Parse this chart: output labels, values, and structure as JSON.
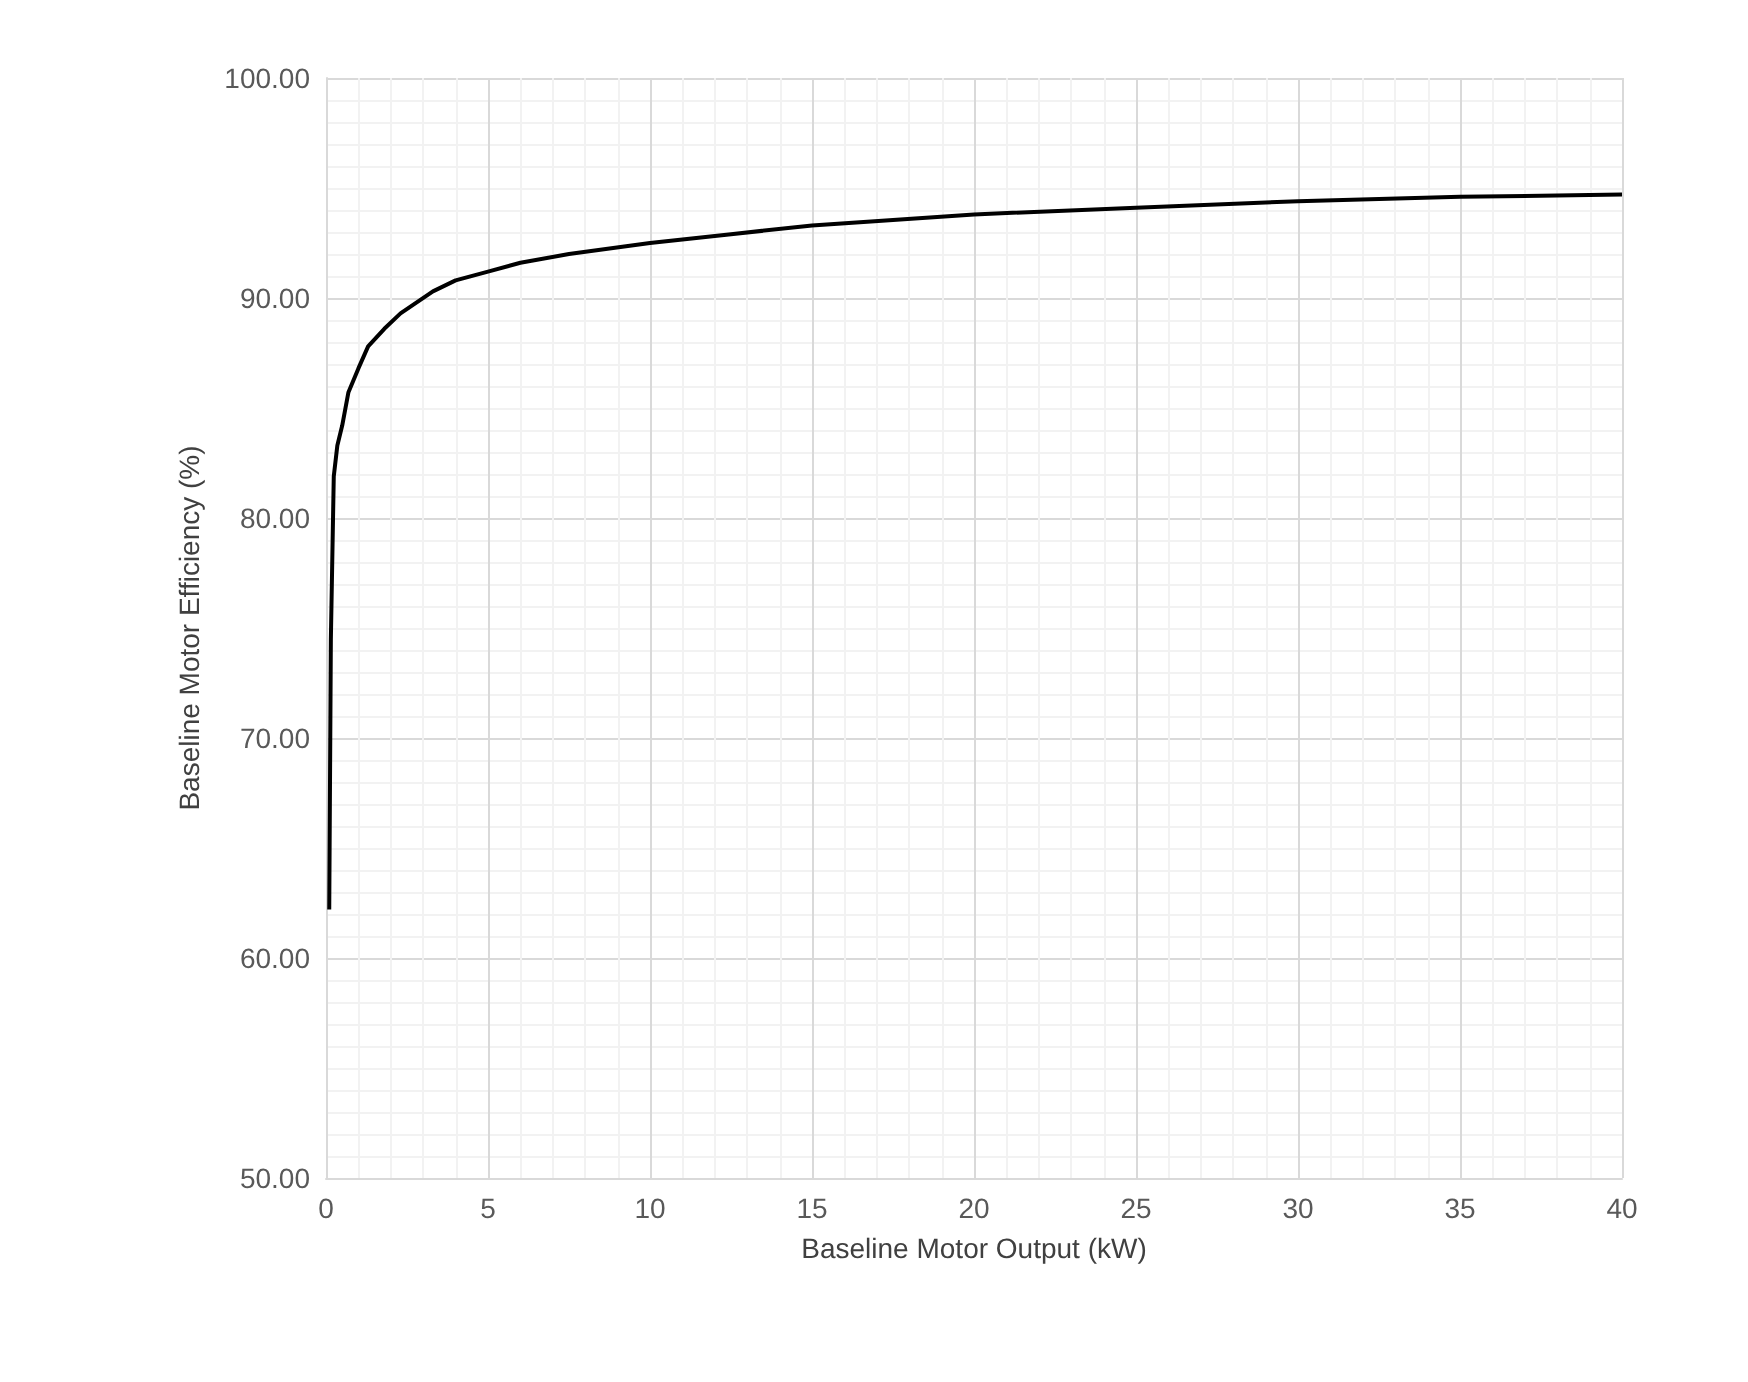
{
  "chart_data": {
    "type": "line",
    "xlabel": "Baseline Motor Output (kW)",
    "ylabel": "Baseline Motor Efficiency (%)",
    "x": [
      0.1,
      0.15,
      0.24,
      0.35,
      0.5,
      0.69,
      1,
      1.3,
      1.8,
      2.3,
      3.3,
      4,
      5,
      6,
      7.5,
      10,
      12.5,
      15,
      20,
      25,
      30,
      35,
      40
    ],
    "series": [
      {
        "color": "#000000",
        "values": [
          62.2,
          74.5,
          81.9,
          83.3,
          84.2,
          85.7,
          86.8,
          87.8,
          88.6,
          89.3,
          90.3,
          90.8,
          91.2,
          91.6,
          92.0,
          92.5,
          92.9,
          93.3,
          93.8,
          94.1,
          94.4,
          94.6,
          94.7
        ]
      }
    ],
    "xlim": [
      0,
      40
    ],
    "xticks": [
      0,
      5,
      10,
      15,
      20,
      25,
      30,
      35,
      40
    ],
    "ylim": [
      50,
      100
    ],
    "yticks": [
      {
        "value": 50,
        "label": "50.00"
      },
      {
        "value": 60,
        "label": "60.00"
      },
      {
        "value": 70,
        "label": "70.00"
      },
      {
        "value": 80,
        "label": "80.00"
      },
      {
        "value": 90,
        "label": "90.00"
      },
      {
        "value": 100,
        "label": "100.00"
      }
    ],
    "grid": true,
    "marker": "none",
    "line_style": "solid"
  }
}
